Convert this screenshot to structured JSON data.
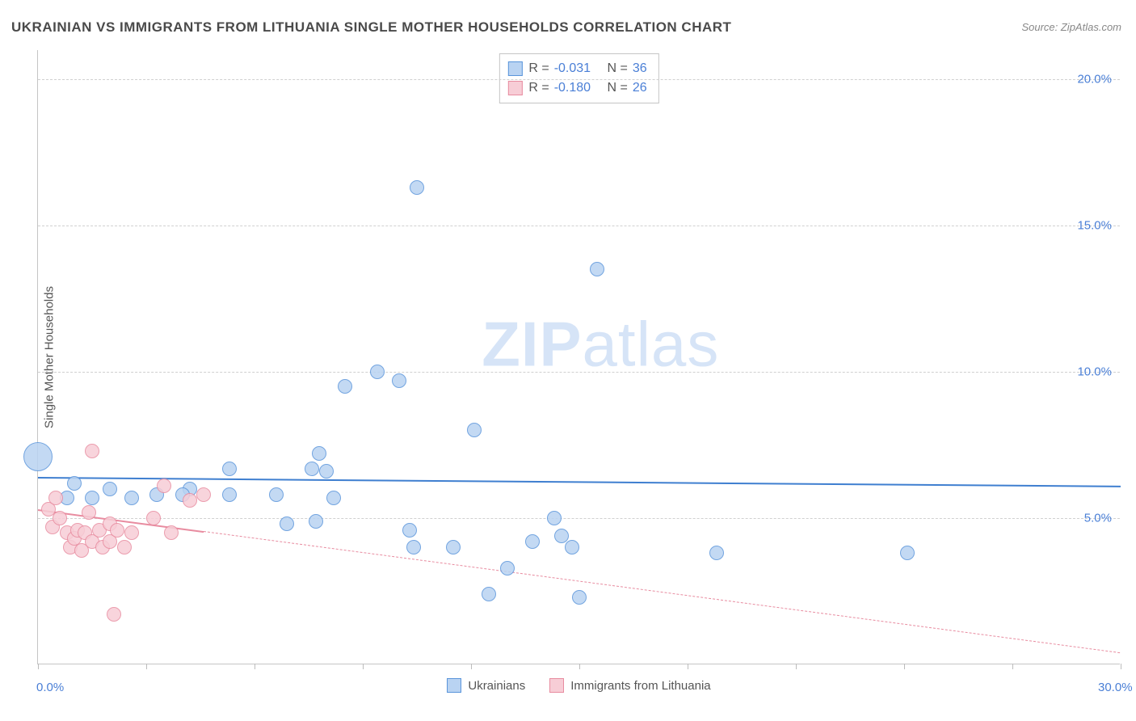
{
  "title": "UKRAINIAN VS IMMIGRANTS FROM LITHUANIA SINGLE MOTHER HOUSEHOLDS CORRELATION CHART",
  "source": "Source: ZipAtlas.com",
  "ylabel": "Single Mother Households",
  "watermark_bold": "ZIP",
  "watermark_thin": "atlas",
  "chart": {
    "type": "scatter",
    "xlim": [
      0,
      30
    ],
    "ylim": [
      0,
      21
    ],
    "x_ticks": [
      0,
      3,
      6,
      9,
      12,
      15,
      18,
      21,
      24,
      27,
      30
    ],
    "x_tick_labels": {
      "0": "0.0%",
      "30": "30.0%"
    },
    "y_gridlines": [
      5,
      10,
      15,
      20
    ],
    "y_tick_labels": {
      "5": "5.0%",
      "10": "10.0%",
      "15": "15.0%",
      "20": "20.0%"
    },
    "background_color": "#ffffff",
    "grid_color": "#d0d0d0",
    "axis_color": "#c5c5c5",
    "tick_label_color": "#4a7fd6",
    "point_radius": 9,
    "point_border_width": 1.5,
    "point_fill_opacity": 0.25,
    "trendline_width": 2
  },
  "series": [
    {
      "key": "ukrainians",
      "label": "Ukrainians",
      "color_fill": "#b9d3f2",
      "color_stroke": "#5a95db",
      "R_label": "R =",
      "R_value": "-0.031",
      "N_label": "N =",
      "N_value": "36",
      "trend": {
        "y_start": 6.4,
        "y_end": 6.1,
        "dashed": false,
        "color": "#3f7fd0"
      },
      "points": [
        {
          "x": 0.0,
          "y": 7.1,
          "r": 18
        },
        {
          "x": 0.8,
          "y": 5.7,
          "r": 9
        },
        {
          "x": 1.0,
          "y": 6.2,
          "r": 9
        },
        {
          "x": 1.5,
          "y": 5.7,
          "r": 9
        },
        {
          "x": 2.0,
          "y": 6.0,
          "r": 9
        },
        {
          "x": 2.6,
          "y": 5.7,
          "r": 9
        },
        {
          "x": 3.3,
          "y": 5.8,
          "r": 9
        },
        {
          "x": 4.2,
          "y": 6.0,
          "r": 9
        },
        {
          "x": 4.0,
          "y": 5.8,
          "r": 9
        },
        {
          "x": 5.3,
          "y": 6.7,
          "r": 9
        },
        {
          "x": 5.3,
          "y": 5.8,
          "r": 9
        },
        {
          "x": 6.6,
          "y": 5.8,
          "r": 9
        },
        {
          "x": 6.9,
          "y": 4.8,
          "r": 9
        },
        {
          "x": 7.6,
          "y": 6.7,
          "r": 9
        },
        {
          "x": 7.7,
          "y": 4.9,
          "r": 9
        },
        {
          "x": 7.8,
          "y": 7.2,
          "r": 9
        },
        {
          "x": 8.0,
          "y": 6.6,
          "r": 9
        },
        {
          "x": 8.2,
          "y": 5.7,
          "r": 9
        },
        {
          "x": 8.5,
          "y": 9.5,
          "r": 9
        },
        {
          "x": 9.4,
          "y": 10.0,
          "r": 9
        },
        {
          "x": 10.0,
          "y": 9.7,
          "r": 9
        },
        {
          "x": 10.3,
          "y": 4.6,
          "r": 9
        },
        {
          "x": 10.4,
          "y": 4.0,
          "r": 9
        },
        {
          "x": 10.5,
          "y": 16.3,
          "r": 9
        },
        {
          "x": 11.5,
          "y": 4.0,
          "r": 9
        },
        {
          "x": 12.1,
          "y": 8.0,
          "r": 9
        },
        {
          "x": 12.5,
          "y": 2.4,
          "r": 9
        },
        {
          "x": 13.0,
          "y": 3.3,
          "r": 9
        },
        {
          "x": 13.7,
          "y": 4.2,
          "r": 9
        },
        {
          "x": 14.3,
          "y": 5.0,
          "r": 9
        },
        {
          "x": 14.5,
          "y": 4.4,
          "r": 9
        },
        {
          "x": 14.8,
          "y": 4.0,
          "r": 9
        },
        {
          "x": 15.0,
          "y": 2.3,
          "r": 9
        },
        {
          "x": 15.5,
          "y": 13.5,
          "r": 9
        },
        {
          "x": 18.8,
          "y": 3.8,
          "r": 9
        },
        {
          "x": 24.1,
          "y": 3.8,
          "r": 9
        }
      ]
    },
    {
      "key": "lithuania",
      "label": "Immigrants from Lithuania",
      "color_fill": "#f7cdd6",
      "color_stroke": "#e88ca0",
      "R_label": "R =",
      "R_value": "-0.180",
      "N_label": "N =",
      "N_value": "26",
      "trend": {
        "y_start": 5.3,
        "y_end": 0.4,
        "dashed": true,
        "color": "#e88ca0"
      },
      "points": [
        {
          "x": 0.3,
          "y": 5.3,
          "r": 9
        },
        {
          "x": 0.4,
          "y": 4.7,
          "r": 9
        },
        {
          "x": 0.5,
          "y": 5.7,
          "r": 9
        },
        {
          "x": 0.6,
          "y": 5.0,
          "r": 9
        },
        {
          "x": 0.8,
          "y": 4.5,
          "r": 9
        },
        {
          "x": 0.9,
          "y": 4.0,
          "r": 9
        },
        {
          "x": 1.0,
          "y": 4.3,
          "r": 9
        },
        {
          "x": 1.1,
          "y": 4.6,
          "r": 9
        },
        {
          "x": 1.2,
          "y": 3.9,
          "r": 9
        },
        {
          "x": 1.3,
          "y": 4.5,
          "r": 9
        },
        {
          "x": 1.4,
          "y": 5.2,
          "r": 9
        },
        {
          "x": 1.5,
          "y": 4.2,
          "r": 9
        },
        {
          "x": 1.5,
          "y": 7.3,
          "r": 9
        },
        {
          "x": 1.7,
          "y": 4.6,
          "r": 9
        },
        {
          "x": 1.8,
          "y": 4.0,
          "r": 9
        },
        {
          "x": 2.0,
          "y": 4.8,
          "r": 9
        },
        {
          "x": 2.0,
          "y": 4.2,
          "r": 9
        },
        {
          "x": 2.1,
          "y": 1.7,
          "r": 9
        },
        {
          "x": 2.2,
          "y": 4.6,
          "r": 9
        },
        {
          "x": 2.4,
          "y": 4.0,
          "r": 9
        },
        {
          "x": 2.6,
          "y": 4.5,
          "r": 9
        },
        {
          "x": 3.2,
          "y": 5.0,
          "r": 9
        },
        {
          "x": 3.5,
          "y": 6.1,
          "r": 9
        },
        {
          "x": 3.7,
          "y": 4.5,
          "r": 9
        },
        {
          "x": 4.2,
          "y": 5.6,
          "r": 9
        },
        {
          "x": 4.6,
          "y": 5.8,
          "r": 9
        }
      ]
    }
  ]
}
